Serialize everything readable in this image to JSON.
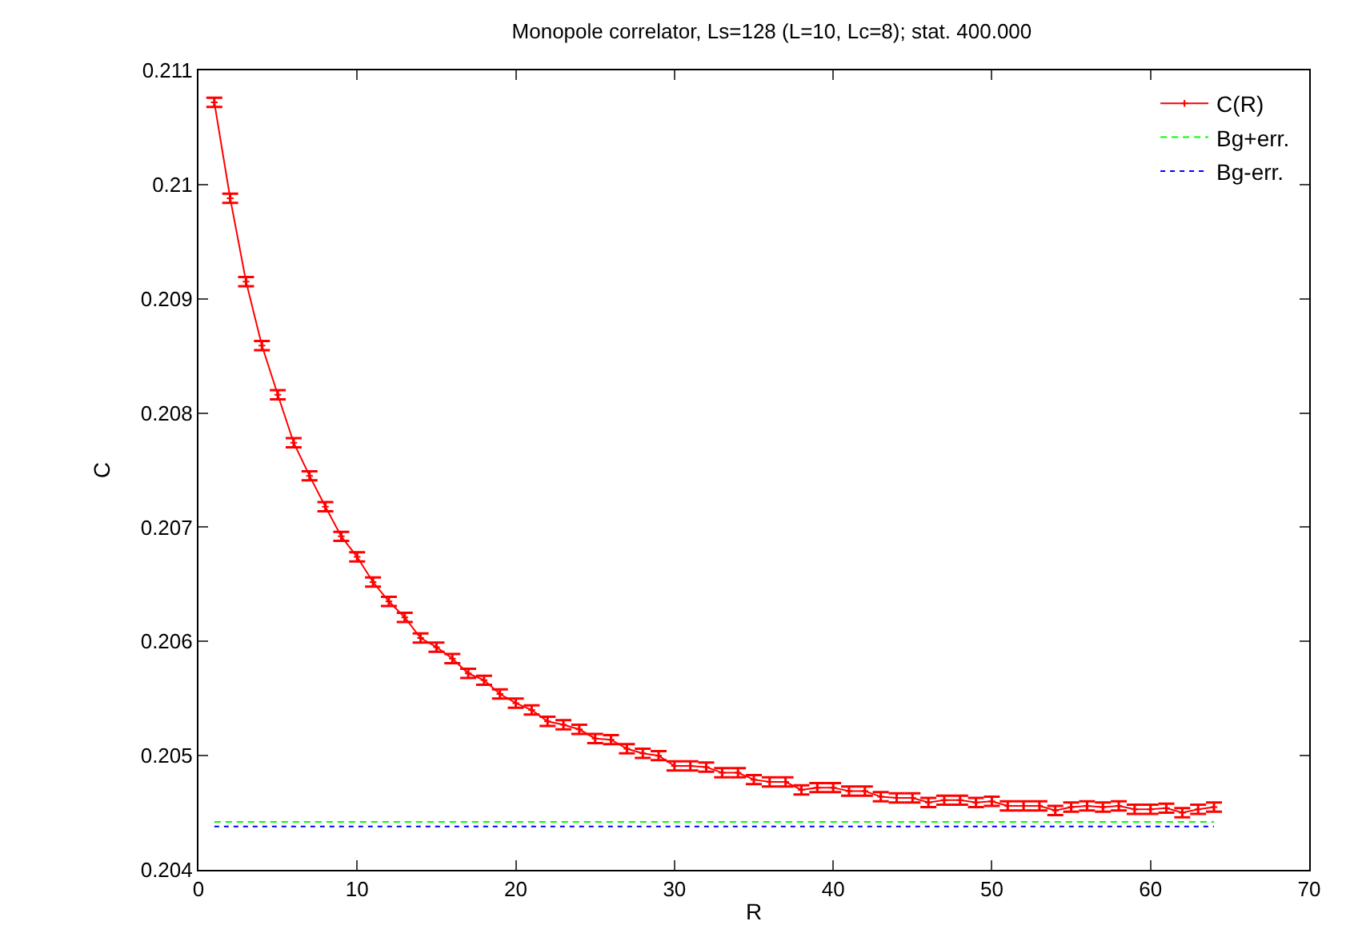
{
  "chart_data": {
    "type": "line",
    "title": "Monopole correlator, Ls=128 (L=10, Lc=8); stat. 400.000",
    "xlabel": "R",
    "ylabel": "C",
    "xlim": [
      0,
      70
    ],
    "xticks": [
      0,
      10,
      20,
      30,
      40,
      50,
      60,
      70
    ],
    "ylim": [
      0.204,
      0.211
    ],
    "yticks": [
      0.204,
      0.205,
      0.206,
      0.207,
      0.208,
      0.209,
      0.21,
      0.211
    ],
    "legend": "top right",
    "series": [
      {
        "name": "C(R)",
        "color": "#ff0000",
        "marker": "cross",
        "line_style": "solid",
        "x": [
          1,
          2,
          3,
          4,
          5,
          6,
          7,
          8,
          9,
          10,
          11,
          12,
          13,
          14,
          15,
          16,
          17,
          18,
          19,
          20,
          21,
          22,
          23,
          24,
          25,
          26,
          27,
          28,
          29,
          30,
          31,
          32,
          33,
          34,
          35,
          36,
          37,
          38,
          39,
          40,
          41,
          42,
          43,
          44,
          45,
          46,
          47,
          48,
          49,
          50,
          51,
          52,
          53,
          54,
          55,
          56,
          57,
          58,
          59,
          60,
          61,
          62,
          63,
          64
        ],
        "values": [
          0.21072,
          0.20988,
          0.20915,
          0.20859,
          0.20816,
          0.20774,
          0.20745,
          0.20718,
          0.20692,
          0.20674,
          0.20652,
          0.20635,
          0.20621,
          0.20603,
          0.20595,
          0.20585,
          0.20572,
          0.20566,
          0.20554,
          0.20546,
          0.2054,
          0.2053,
          0.20527,
          0.20523,
          0.20515,
          0.20514,
          0.20506,
          0.20502,
          0.205,
          0.20491,
          0.20491,
          0.2049,
          0.20485,
          0.20485,
          0.20479,
          0.20477,
          0.20477,
          0.2047,
          0.20472,
          0.20472,
          0.20469,
          0.20469,
          0.20464,
          0.20463,
          0.20463,
          0.20459,
          0.20461,
          0.20461,
          0.20459,
          0.2046,
          0.20456,
          0.20456,
          0.20456,
          0.20452,
          0.20455,
          0.20456,
          0.20455,
          0.20456,
          0.20453,
          0.20453,
          0.20454,
          0.2045,
          0.20453,
          0.20455
        ],
        "errors": [
          4e-05,
          4e-05,
          4e-05,
          4e-05,
          4e-05,
          4e-05,
          4e-05,
          4e-05,
          4e-05,
          4e-05,
          4e-05,
          4e-05,
          4e-05,
          4e-05,
          4e-05,
          4e-05,
          4e-05,
          4e-05,
          4e-05,
          4e-05,
          4e-05,
          4e-05,
          4e-05,
          4e-05,
          4e-05,
          4e-05,
          4e-05,
          4e-05,
          4e-05,
          4e-05,
          4e-05,
          4e-05,
          4e-05,
          4e-05,
          4e-05,
          4e-05,
          4e-05,
          4e-05,
          4e-05,
          4e-05,
          4e-05,
          4e-05,
          4e-05,
          4e-05,
          4e-05,
          4e-05,
          4e-05,
          4e-05,
          4e-05,
          4e-05,
          4e-05,
          4e-05,
          4e-05,
          4e-05,
          4e-05,
          4e-05,
          4e-05,
          4e-05,
          4e-05,
          4e-05,
          4e-05,
          4e-05,
          4e-05,
          4e-05
        ]
      },
      {
        "name": "Bg+err.",
        "color": "#00ff00",
        "marker": "none",
        "line_style": "dashed",
        "x": [
          1,
          64
        ],
        "values": [
          0.20442,
          0.20442
        ]
      },
      {
        "name": "Bg-err.",
        "color": "#0000ff",
        "marker": "none",
        "line_style": "dotted",
        "x": [
          1,
          64
        ],
        "values": [
          0.20438,
          0.20438
        ]
      }
    ]
  }
}
